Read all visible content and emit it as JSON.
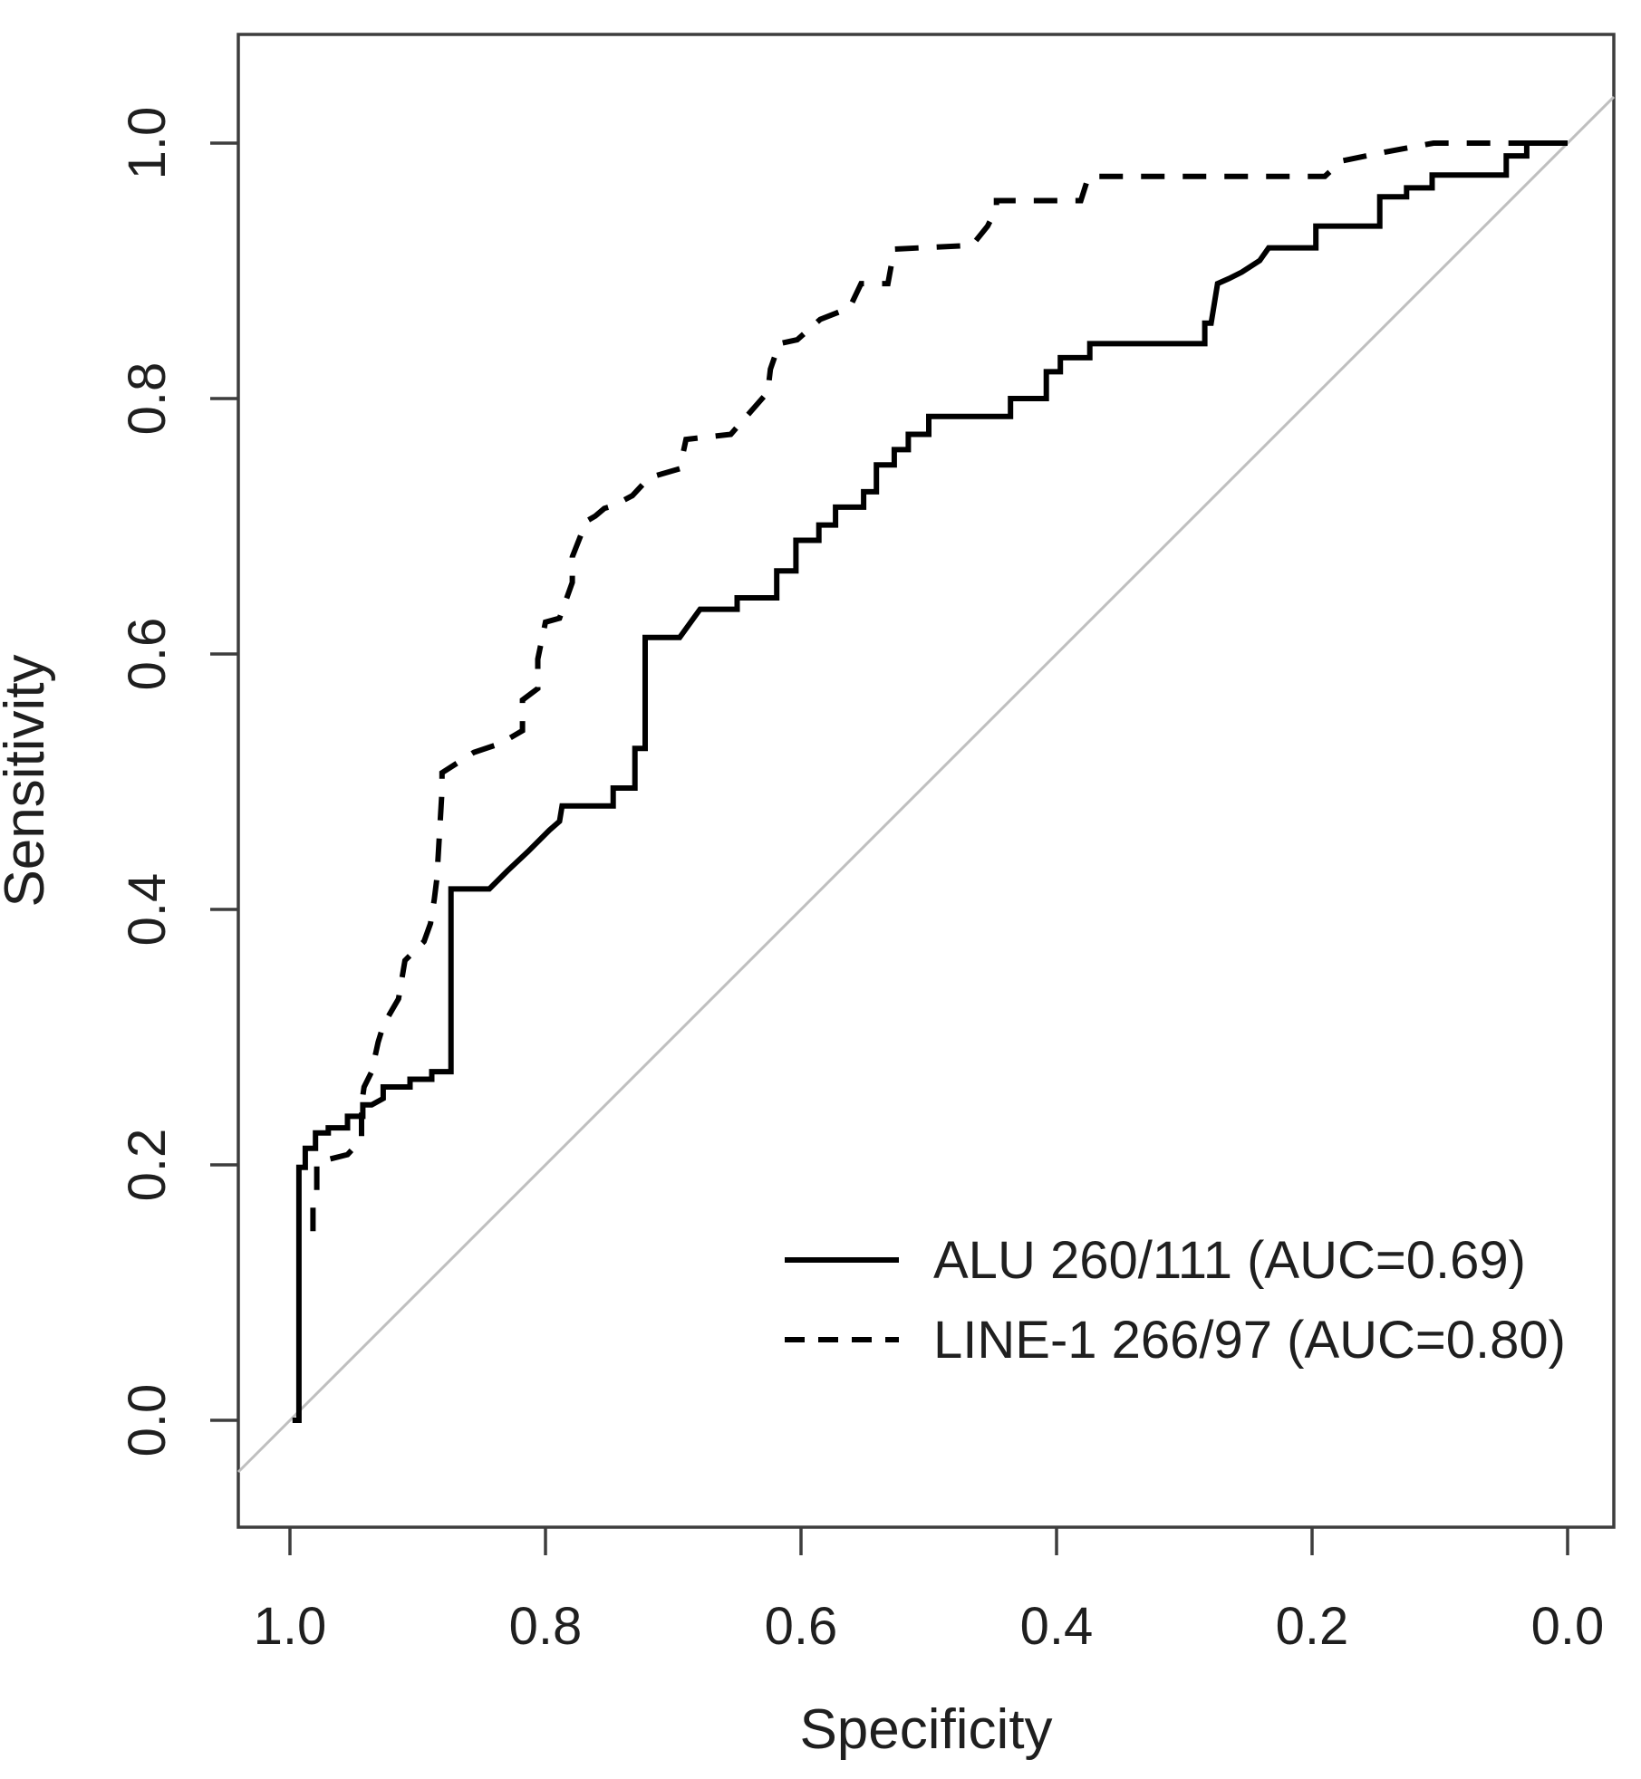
{
  "figure": {
    "xlabel": "Specificity",
    "ylabel": "Sensitivity"
  },
  "legend": {
    "items": [
      {
        "label": "ALU 260/111 (AUC=0.69)",
        "style": "solid"
      },
      {
        "label": "LINE-1 266/97 (AUC=0.80)",
        "style": "dashed"
      }
    ]
  },
  "colors": {
    "curve": "#000000",
    "diagonal": "#bfbfbf",
    "axis": "#3d3d3d",
    "text": "#1f1f1f"
  },
  "chart_data": {
    "type": "line",
    "title": "",
    "xlabel": "Specificity",
    "ylabel": "Sensitivity",
    "x_axis": {
      "range": [
        1.0,
        0.0
      ],
      "reversed": true,
      "ticks": [
        1.0,
        0.8,
        0.6,
        0.4,
        0.2,
        0.0
      ]
    },
    "y_axis": {
      "range": [
        0.0,
        1.0
      ],
      "ticks": [
        0.0,
        0.2,
        0.4,
        0.6,
        0.8,
        1.0
      ]
    },
    "grid": false,
    "legend_position": "lower-right",
    "reference_line": "diagonal chance line (sens = 1 - spec)",
    "series": [
      {
        "name": "ALU 260/111 (AUC=0.69)",
        "auc": 0.69,
        "line_style": "solid",
        "points_spec_sens": [
          [
            0.998,
            0.0
          ],
          [
            0.993,
            0.0
          ],
          [
            0.993,
            0.198
          ],
          [
            0.988,
            0.198
          ],
          [
            0.988,
            0.213
          ],
          [
            0.98,
            0.213
          ],
          [
            0.98,
            0.225
          ],
          [
            0.97,
            0.225
          ],
          [
            0.97,
            0.229
          ],
          [
            0.955,
            0.229
          ],
          [
            0.955,
            0.238
          ],
          [
            0.943,
            0.238
          ],
          [
            0.943,
            0.247
          ],
          [
            0.936,
            0.247
          ],
          [
            0.927,
            0.252
          ],
          [
            0.927,
            0.261
          ],
          [
            0.906,
            0.261
          ],
          [
            0.906,
            0.267
          ],
          [
            0.889,
            0.267
          ],
          [
            0.889,
            0.273
          ],
          [
            0.874,
            0.273
          ],
          [
            0.874,
            0.416
          ],
          [
            0.844,
            0.416
          ],
          [
            0.83,
            0.43
          ],
          [
            0.814,
            0.445
          ],
          [
            0.797,
            0.462
          ],
          [
            0.789,
            0.469
          ],
          [
            0.787,
            0.481
          ],
          [
            0.747,
            0.481
          ],
          [
            0.747,
            0.495
          ],
          [
            0.73,
            0.495
          ],
          [
            0.73,
            0.526
          ],
          [
            0.722,
            0.526
          ],
          [
            0.722,
            0.613
          ],
          [
            0.695,
            0.613
          ],
          [
            0.679,
            0.635
          ],
          [
            0.65,
            0.635
          ],
          [
            0.65,
            0.644
          ],
          [
            0.619,
            0.644
          ],
          [
            0.619,
            0.665
          ],
          [
            0.604,
            0.665
          ],
          [
            0.604,
            0.689
          ],
          [
            0.586,
            0.689
          ],
          [
            0.586,
            0.701
          ],
          [
            0.573,
            0.701
          ],
          [
            0.573,
            0.715
          ],
          [
            0.551,
            0.715
          ],
          [
            0.551,
            0.727
          ],
          [
            0.541,
            0.727
          ],
          [
            0.541,
            0.748
          ],
          [
            0.527,
            0.748
          ],
          [
            0.527,
            0.76
          ],
          [
            0.516,
            0.76
          ],
          [
            0.516,
            0.772
          ],
          [
            0.5,
            0.772
          ],
          [
            0.5,
            0.786
          ],
          [
            0.436,
            0.786
          ],
          [
            0.436,
            0.8
          ],
          [
            0.408,
            0.8
          ],
          [
            0.408,
            0.821
          ],
          [
            0.397,
            0.821
          ],
          [
            0.397,
            0.832
          ],
          [
            0.374,
            0.832
          ],
          [
            0.374,
            0.843
          ],
          [
            0.284,
            0.843
          ],
          [
            0.284,
            0.859
          ],
          [
            0.279,
            0.859
          ],
          [
            0.274,
            0.89
          ],
          [
            0.265,
            0.894
          ],
          [
            0.255,
            0.899
          ],
          [
            0.241,
            0.908
          ],
          [
            0.234,
            0.918
          ],
          [
            0.197,
            0.918
          ],
          [
            0.197,
            0.935
          ],
          [
            0.147,
            0.935
          ],
          [
            0.147,
            0.958
          ],
          [
            0.126,
            0.958
          ],
          [
            0.126,
            0.965
          ],
          [
            0.106,
            0.965
          ],
          [
            0.106,
            0.975
          ],
          [
            0.048,
            0.975
          ],
          [
            0.048,
            0.99
          ],
          [
            0.032,
            0.99
          ],
          [
            0.032,
            1.0
          ],
          [
            0.0,
            1.0
          ]
        ]
      },
      {
        "name": "LINE-1 266/97 (AUC=0.80)",
        "auc": 0.8,
        "line_style": "dashed",
        "points_spec_sens": [
          [
            0.982,
            0.148
          ],
          [
            0.982,
            0.167
          ],
          [
            0.979,
            0.18
          ],
          [
            0.979,
            0.202
          ],
          [
            0.955,
            0.208
          ],
          [
            0.944,
            0.22
          ],
          [
            0.944,
            0.247
          ],
          [
            0.942,
            0.261
          ],
          [
            0.936,
            0.273
          ],
          [
            0.931,
            0.296
          ],
          [
            0.927,
            0.309
          ],
          [
            0.922,
            0.318
          ],
          [
            0.915,
            0.33
          ],
          [
            0.91,
            0.36
          ],
          [
            0.895,
            0.375
          ],
          [
            0.89,
            0.389
          ],
          [
            0.887,
            0.408
          ],
          [
            0.885,
            0.424
          ],
          [
            0.881,
            0.493
          ],
          [
            0.881,
            0.507
          ],
          [
            0.856,
            0.523
          ],
          [
            0.835,
            0.53
          ],
          [
            0.818,
            0.54
          ],
          [
            0.818,
            0.564
          ],
          [
            0.806,
            0.573
          ],
          [
            0.806,
            0.596
          ],
          [
            0.8,
            0.625
          ],
          [
            0.789,
            0.628
          ],
          [
            0.779,
            0.656
          ],
          [
            0.779,
            0.676
          ],
          [
            0.768,
            0.704
          ],
          [
            0.761,
            0.708
          ],
          [
            0.754,
            0.714
          ],
          [
            0.747,
            0.716
          ],
          [
            0.732,
            0.724
          ],
          [
            0.719,
            0.738
          ],
          [
            0.695,
            0.745
          ],
          [
            0.69,
            0.768
          ],
          [
            0.655,
            0.772
          ],
          [
            0.626,
            0.805
          ],
          [
            0.624,
            0.823
          ],
          [
            0.617,
            0.843
          ],
          [
            0.603,
            0.846
          ],
          [
            0.585,
            0.862
          ],
          [
            0.562,
            0.871
          ],
          [
            0.553,
            0.89
          ],
          [
            0.532,
            0.89
          ],
          [
            0.527,
            0.917
          ],
          [
            0.466,
            0.92
          ],
          [
            0.454,
            0.935
          ],
          [
            0.447,
            0.949
          ],
          [
            0.447,
            0.955
          ],
          [
            0.381,
            0.955
          ],
          [
            0.375,
            0.974
          ],
          [
            0.19,
            0.974
          ],
          [
            0.177,
            0.986
          ],
          [
            0.143,
            0.993
          ],
          [
            0.105,
            1.0
          ],
          [
            0.0,
            1.0
          ]
        ]
      }
    ]
  }
}
